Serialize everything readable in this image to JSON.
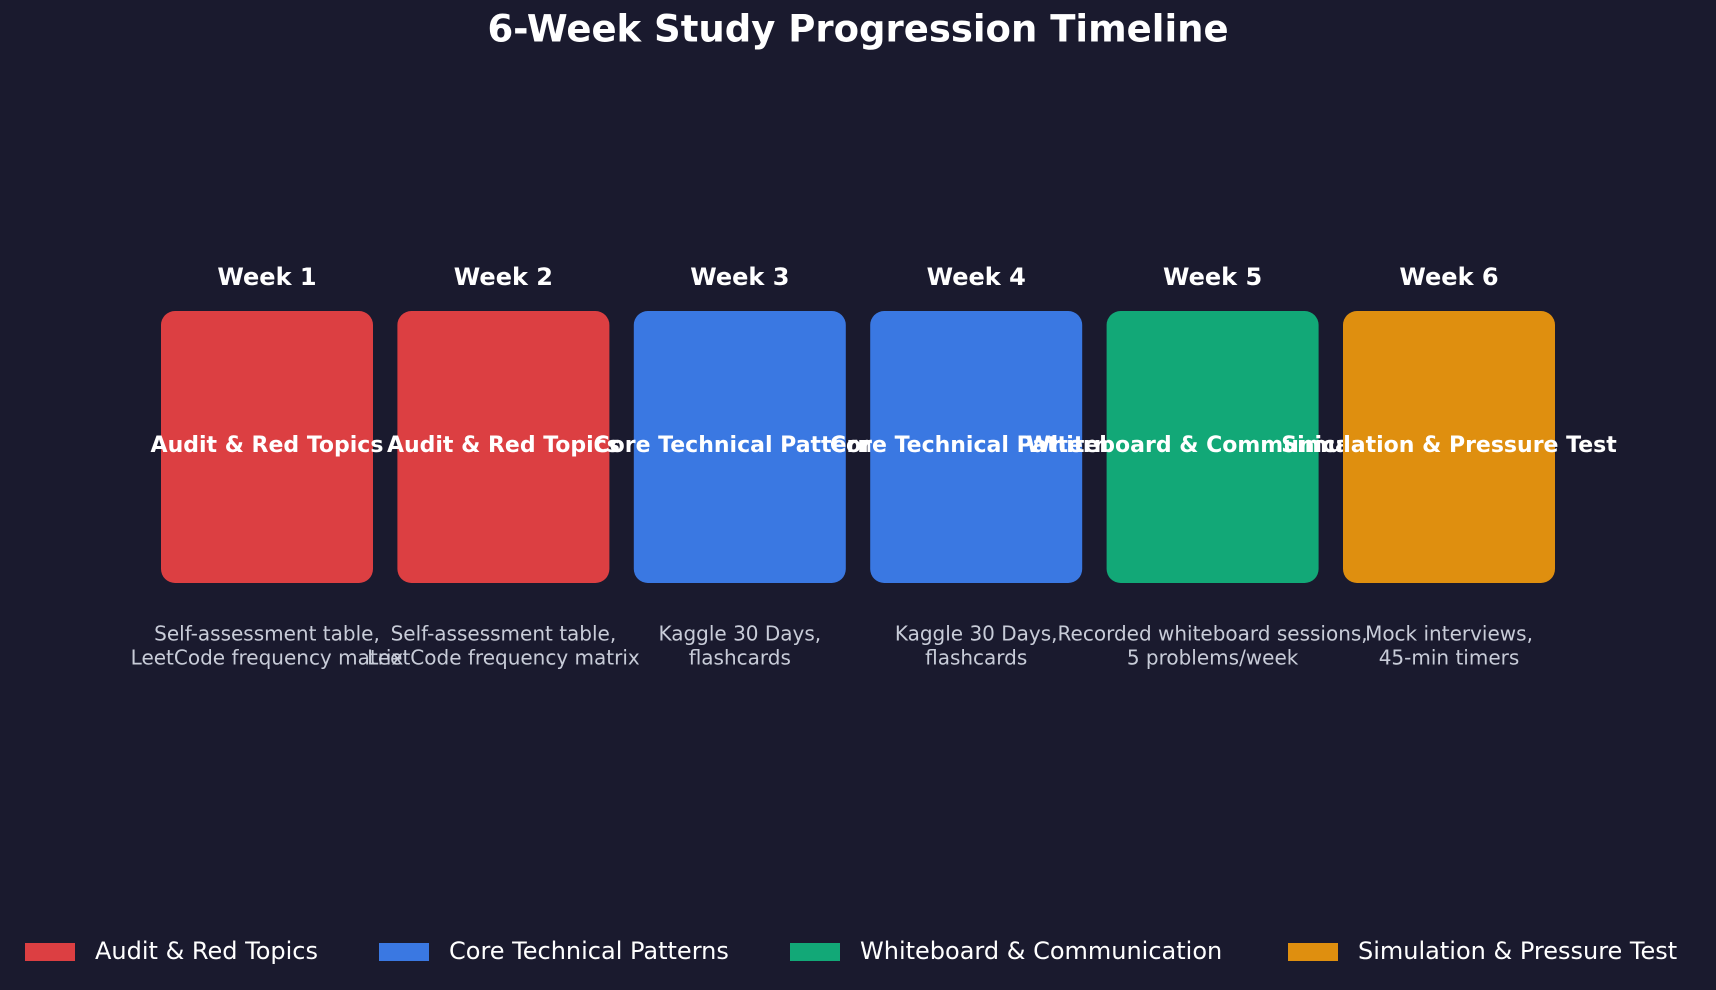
{
  "title": "6-Week Study Progression Timeline",
  "weeks": [
    {
      "label": "Week 1",
      "phase": "Audit & Red Topics",
      "resources": [
        "Self-assessment table,",
        "LeetCode frequency matrix"
      ]
    },
    {
      "label": "Week 2",
      "phase": "Audit & Red Topics",
      "resources": [
        "Self-assessment table,",
        "LeetCode frequency matrix"
      ]
    },
    {
      "label": "Week 3",
      "phase": "Core Technical Patterns",
      "resources": [
        "Kaggle 30 Days,",
        "flashcards"
      ]
    },
    {
      "label": "Week 4",
      "phase": "Core Technical Patterns",
      "resources": [
        "Kaggle 30 Days,",
        "flashcards"
      ]
    },
    {
      "label": "Week 5",
      "phase": "Whiteboard & Communication",
      "resources": [
        "Recorded whiteboard sessions,",
        "5 problems/week"
      ]
    },
    {
      "label": "Week 6",
      "phase": "Simulation & Pressure Test",
      "resources": [
        "Mock interviews,",
        "45-min timers"
      ]
    }
  ],
  "legend": [
    {
      "name": "Audit & Red Topics",
      "color": "#dc3f42"
    },
    {
      "name": "Core Technical Patterns",
      "color": "#3a78e2"
    },
    {
      "name": "Whiteboard & Communication",
      "color": "#12a877"
    },
    {
      "name": "Simulation & Pressure Test",
      "color": "#df8f0f"
    }
  ]
}
